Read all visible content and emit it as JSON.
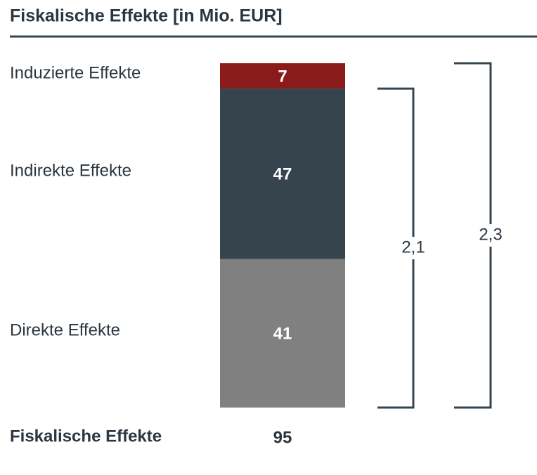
{
  "chart_data": {
    "type": "bar",
    "stacked": true,
    "title": "Fiskalische Effekte [in Mio. EUR]",
    "categories": [
      null
    ],
    "series": [
      {
        "name": "Direkte Effekte",
        "color": "#808080",
        "values": [
          41
        ]
      },
      {
        "name": "Indirekte Effekte",
        "color": "#36444e",
        "values": [
          47
        ]
      },
      {
        "name": "Induzierte Effekte",
        "color": "#8b1a1a",
        "values": [
          7
        ]
      }
    ],
    "ylim": [
      0,
      95
    ],
    "total_label": "Fiskalische Effekte",
    "total": 95,
    "annotations": [
      "2,1",
      "2,3"
    ]
  }
}
